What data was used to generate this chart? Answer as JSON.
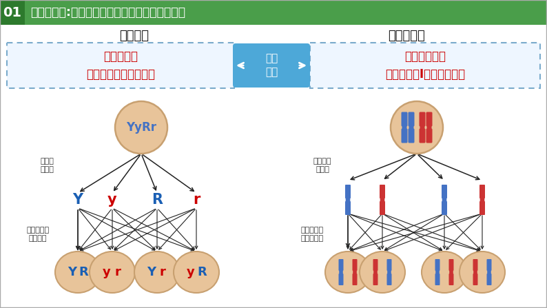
{
  "title": "萨顿的假说:萨顿将基因与染色体的行为进行比较",
  "title_num": "01",
  "left_header": "基因行为",
  "right_header": "染色体行为",
  "left_box_line1": "非等位基因",
  "left_box_line2": "在形成配子时自由组合",
  "right_box_line1": "非同源染色体",
  "right_box_line2": "在减数分裂Ⅰ后期自由组合",
  "middle_box_line1": "行为",
  "middle_box_line2": "变化",
  "top_circle_left": "YyRr",
  "label_left_sep": "等位基\n因分离",
  "label_left_free": "非等位基因\n自由组合",
  "label_right_sep": "同源染色\n体分离",
  "label_right_free": "非同源染色\n体自由组合",
  "mid_labels_left": [
    "Y",
    "y",
    "R",
    "r"
  ],
  "mid_colors_left": [
    "#1a5fb4",
    "#cc0000",
    "#1a5fb4",
    "#cc0000"
  ],
  "bottom_labels_left": [
    "YR",
    "yr",
    "Yr",
    "yR"
  ],
  "bottom_colors_left": [
    [
      "#1a5fb4",
      "#1a5fb4"
    ],
    [
      "#cc0000",
      "#cc0000"
    ],
    [
      "#1a5fb4",
      "#cc0000"
    ],
    [
      "#cc0000",
      "#1a5fb4"
    ]
  ],
  "circle_fill": "#e8c49a",
  "circle_edge": "#c8a070",
  "bg_color": "#ffffff",
  "title_bg": "#4a9e4a",
  "title_num_bg": "#2d7a2d",
  "box_border_color": "#7aabcc",
  "box_fill": "#eef6ff",
  "mid_box_fill": "#4da8d8",
  "mid_box_edge": "#2288bb",
  "arrow_color": "#222222",
  "blue_chr": "#4472c4",
  "red_chr": "#cc3333",
  "top_chr_colors": [
    [
      "#4472c4",
      "#4472c4"
    ],
    [
      "#cc3333",
      "#cc3333"
    ]
  ],
  "mid_chr_colors": [
    "#4472c4",
    "#cc3333",
    "#4472c4",
    "#cc3333"
  ],
  "bot_chr_left": [
    "#4472c4",
    "#cc3333",
    "#4472c4",
    "#cc3333"
  ],
  "bot_chr_right": [
    "#cc3333",
    "#4472c4",
    "#cc3333",
    "#4472c4"
  ]
}
